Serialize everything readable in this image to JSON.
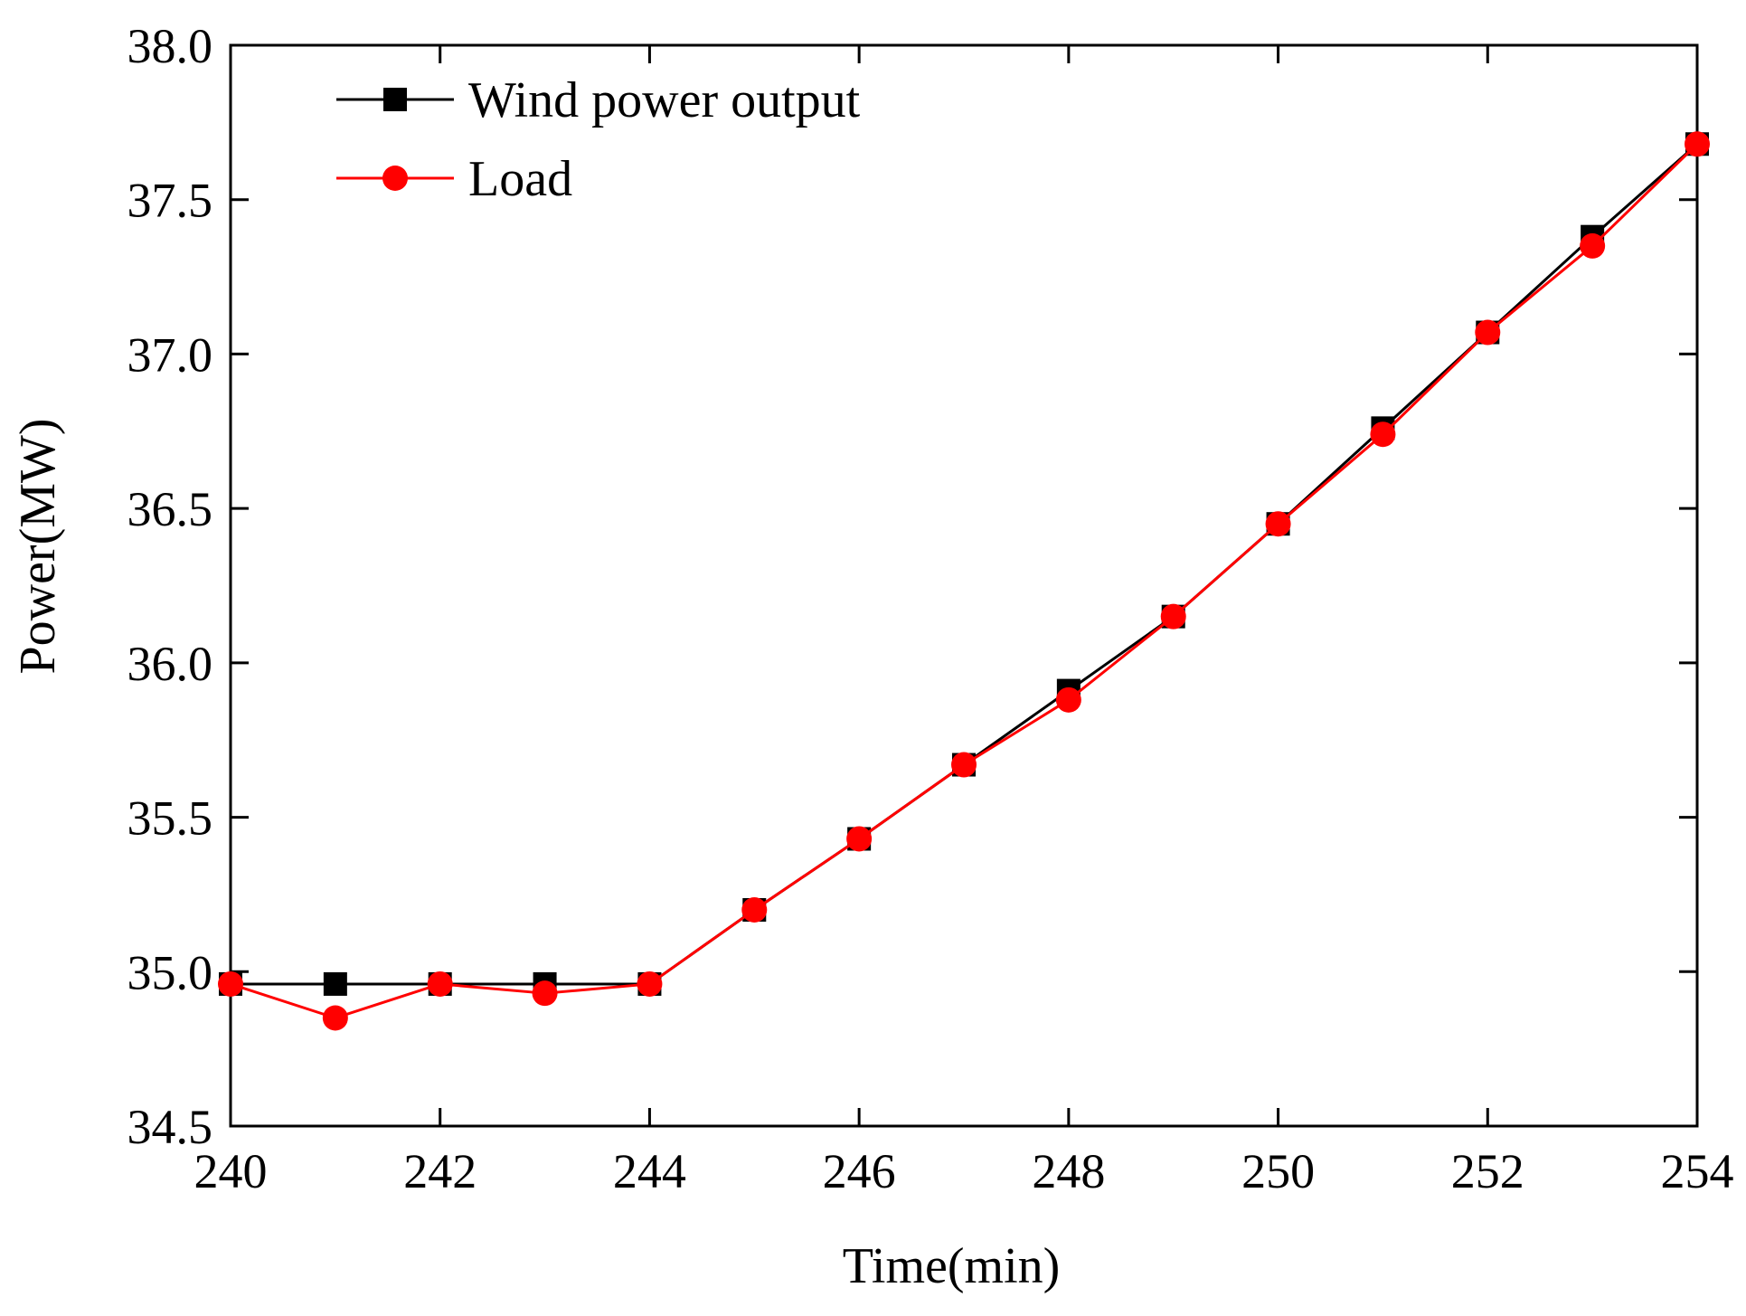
{
  "chart_data": {
    "type": "line",
    "title": "",
    "xlabel": "Time(min)",
    "ylabel": "Power(MW)",
    "xlim": [
      240,
      254
    ],
    "ylim": [
      34.5,
      38.0
    ],
    "x_ticks": [
      240,
      242,
      244,
      246,
      248,
      250,
      252,
      254
    ],
    "x_tick_labels": [
      "240",
      "242",
      "244",
      "246",
      "248",
      "250",
      "252",
      "254"
    ],
    "y_ticks": [
      34.5,
      35.0,
      35.5,
      36.0,
      36.5,
      37.0,
      37.5,
      38.0
    ],
    "y_tick_labels": [
      "34.5",
      "35.0",
      "35.5",
      "36.0",
      "36.5",
      "37.0",
      "37.5",
      "38.0"
    ],
    "grid": false,
    "legend_position": "top-left",
    "x": [
      240,
      241,
      242,
      243,
      244,
      245,
      246,
      247,
      248,
      249,
      250,
      251,
      252,
      253,
      254
    ],
    "series": [
      {
        "name": "Wind power output",
        "color": "#000000",
        "marker": "square",
        "values": [
          34.96,
          34.96,
          34.96,
          34.96,
          34.96,
          35.2,
          35.43,
          35.67,
          35.91,
          36.15,
          36.45,
          36.76,
          37.07,
          37.38,
          37.68
        ]
      },
      {
        "name": "Load",
        "color": "#ff0000",
        "marker": "circle",
        "values": [
          34.96,
          34.85,
          34.96,
          34.93,
          34.96,
          35.2,
          35.43,
          35.67,
          35.88,
          36.15,
          36.45,
          36.74,
          37.07,
          37.35,
          37.68
        ]
      }
    ]
  }
}
